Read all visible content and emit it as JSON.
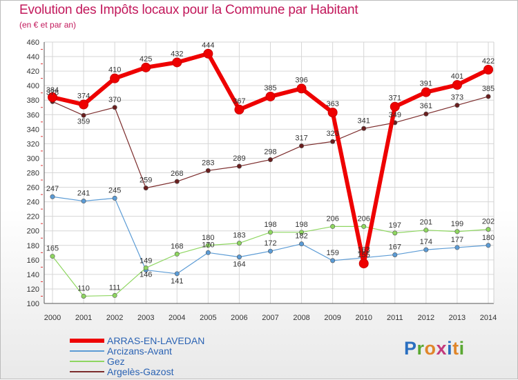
{
  "title": "Evolution des Impôts locaux pour la Commune par Habitant",
  "subtitle": "(en € et par an)",
  "logo": {
    "text": "Proxiti",
    "colors": [
      "#2a6fc0",
      "#5aa832",
      "#e0862a",
      "#c43a7c",
      "#2a6fc0",
      "#e0862a",
      "#5aa832"
    ]
  },
  "chart_data": {
    "type": "line",
    "title": "Evolution des Impôts locaux pour la Commune par Habitant",
    "x": [
      "2000",
      "2001",
      "2002",
      "2003",
      "2004",
      "2005",
      "2006",
      "2007",
      "2008",
      "2009",
      "2010",
      "2011",
      "2012",
      "2013",
      "2014"
    ],
    "ylim": [
      100,
      460
    ],
    "yticks": [
      100,
      120,
      140,
      160,
      180,
      200,
      220,
      240,
      260,
      280,
      300,
      320,
      340,
      360,
      380,
      400,
      420,
      440,
      460
    ],
    "grid": true,
    "legend_position": "bottom-left",
    "series": [
      {
        "name": "ARRAS-EN-LAVEDAN",
        "color": "#ee0000",
        "values": [
          384,
          374,
          410,
          425,
          432,
          444,
          367,
          385,
          396,
          363,
          155,
          371,
          391,
          401,
          422
        ]
      },
      {
        "name": "Arcizans-Avant",
        "color": "#5b9bd5",
        "values": [
          247,
          241,
          245,
          146,
          141,
          170,
          164,
          172,
          182,
          159,
          163,
          167,
          174,
          177,
          180
        ]
      },
      {
        "name": "Gez",
        "color": "#8ed660",
        "values": [
          165,
          110,
          111,
          149,
          168,
          180,
          183,
          198,
          198,
          206,
          206,
          197,
          201,
          199,
          202
        ]
      },
      {
        "name": "Argelès-Gazost",
        "color": "#7b2b2b",
        "values": [
          378,
          359,
          370,
          259,
          268,
          283,
          289,
          298,
          317,
          323,
          341,
          349,
          361,
          373,
          385
        ]
      }
    ],
    "data_labels": [
      [
        "384",
        "374",
        "410",
        "425",
        "432",
        "444",
        "367",
        "385",
        "396",
        "363",
        "155",
        "371",
        "391",
        "401",
        "422"
      ],
      [
        "247",
        "241",
        "245",
        "146",
        "141",
        "170",
        "164",
        "172",
        "182",
        "159",
        "163",
        "167",
        "174",
        "177",
        "180"
      ],
      [
        "165",
        "110",
        "111",
        "149",
        "168",
        "180",
        "183",
        "198",
        "198",
        "206",
        "206",
        "197",
        "201",
        "199",
        "202"
      ],
      [
        "378",
        "359",
        "370",
        "259",
        "268",
        "283",
        "289",
        "298",
        "317",
        "323",
        "341",
        "349",
        "361",
        "373",
        "385"
      ]
    ]
  }
}
